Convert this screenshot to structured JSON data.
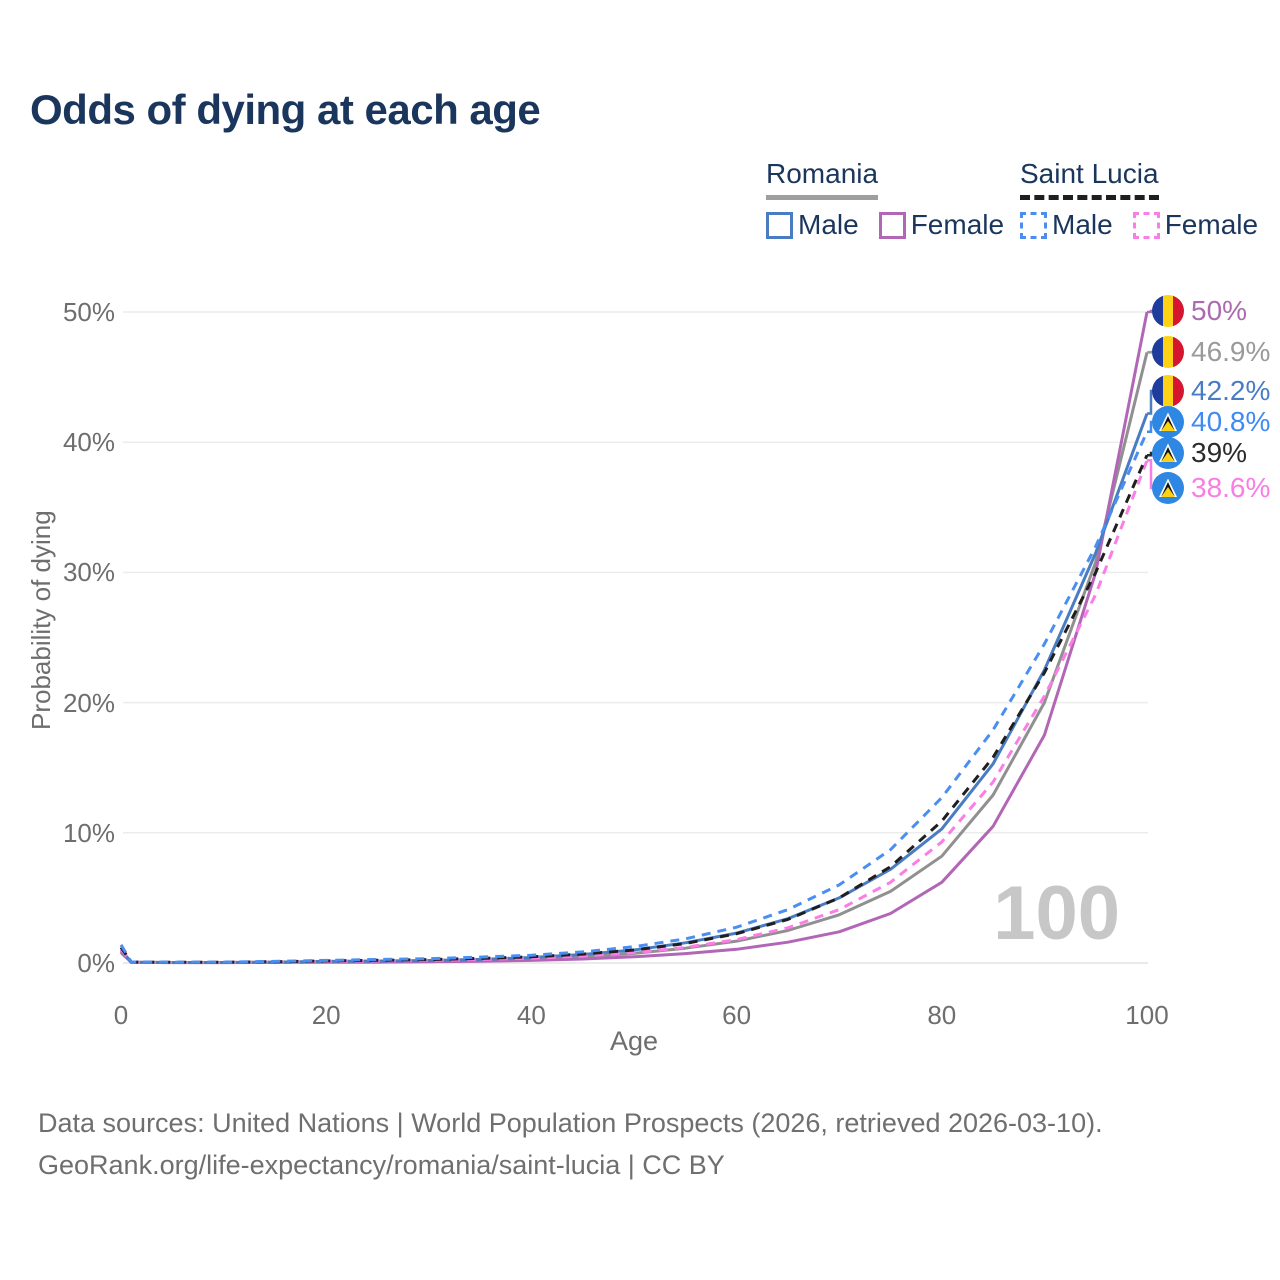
{
  "title": "Odds of dying at each age",
  "legend": {
    "romania": {
      "title": "Romania",
      "male": "Male",
      "female": "Female"
    },
    "saint_lucia": {
      "title": "Saint Lucia",
      "male": "Male",
      "female": "Female"
    }
  },
  "axes": {
    "x": {
      "label": "Age",
      "ticks": [
        "0",
        "20",
        "40",
        "60",
        "80",
        "100"
      ]
    },
    "y": {
      "label": "Probability of dying",
      "ticks": [
        "0%",
        "10%",
        "20%",
        "30%",
        "40%",
        "50%"
      ]
    }
  },
  "watermark": "100",
  "footer": {
    "line1": "Data sources: United Nations | World Population Prospects (2026, retrieved 2026-03-10).",
    "line2": "GeoRank.org/life-expectancy/romania/saint-lucia | CC BY"
  },
  "colors": {
    "title_text": "#1b365c",
    "romania_male": "#4a7cc2",
    "romania_female": "#b266b6",
    "romania_both": "#909090",
    "saint_lucia_male": "#4b8ef2",
    "saint_lucia_female": "#fb7de6",
    "saint_lucia_both": "#1f1f1f",
    "grid": "#ececec",
    "axis_text": "#6e6e6e",
    "watermark": "#c7c7c7"
  },
  "end_labels": [
    {
      "value": "50%",
      "series": "Romania Female",
      "flag": "ro",
      "color": "#aa6bb0"
    },
    {
      "value": "46.9%",
      "series": "Romania Both sexes",
      "flag": "ro",
      "color": "#9a9a9a"
    },
    {
      "value": "42.2%",
      "series": "Romania Male",
      "flag": "ro",
      "color": "#4a7cc4"
    },
    {
      "value": "40.8%",
      "series": "Saint Lucia Male",
      "flag": "lc",
      "color": "#3f8af3"
    },
    {
      "value": "39%",
      "series": "Saint Lucia Both sexes",
      "flag": "lc",
      "color": "#2b2b2b"
    },
    {
      "value": "38.6%",
      "series": "Saint Lucia Female",
      "flag": "lc",
      "color": "#f87de4"
    }
  ],
  "chart_data": {
    "type": "line",
    "title": "Odds of dying at each age",
    "xlabel": "Age",
    "ylabel": "Probability of dying",
    "xlim": [
      0,
      100
    ],
    "ylim": [
      0,
      50
    ],
    "grid": "horizontal-only",
    "legend_position": "top-right",
    "x": [
      0,
      1,
      5,
      10,
      15,
      20,
      25,
      30,
      35,
      40,
      45,
      50,
      55,
      60,
      65,
      70,
      75,
      80,
      85,
      90,
      95,
      100
    ],
    "series": [
      {
        "name": "Romania Both sexes",
        "country": "Romania",
        "sex": "both",
        "color": "#909090",
        "dashed": false,
        "values": [
          0.9,
          0.055,
          0.035,
          0.035,
          0.055,
          0.09,
          0.11,
          0.14,
          0.21,
          0.31,
          0.48,
          0.74,
          1.14,
          1.68,
          2.5,
          3.7,
          5.5,
          8.2,
          12.9,
          20.0,
          30.8,
          46.9
        ]
      },
      {
        "name": "Romania Female",
        "country": "Romania",
        "sex": "female",
        "color": "#b266b6",
        "dashed": false,
        "values": [
          0.8,
          0.05,
          0.03,
          0.03,
          0.04,
          0.05,
          0.06,
          0.09,
          0.13,
          0.2,
          0.31,
          0.48,
          0.72,
          1.05,
          1.6,
          2.4,
          3.8,
          6.2,
          10.5,
          17.5,
          30.0,
          50.0
        ]
      },
      {
        "name": "Romania Male",
        "country": "Romania",
        "sex": "male",
        "color": "#4a7cc2",
        "dashed": false,
        "values": [
          1.0,
          0.06,
          0.04,
          0.04,
          0.07,
          0.12,
          0.15,
          0.19,
          0.28,
          0.42,
          0.65,
          1.0,
          1.55,
          2.3,
          3.4,
          5.0,
          7.2,
          10.3,
          15.3,
          22.5,
          31.5,
          42.2
        ]
      },
      {
        "name": "Saint Lucia Female",
        "country": "Saint Lucia",
        "sex": "female",
        "color": "#fb7de6",
        "dashed": true,
        "values": [
          1.05,
          0.06,
          0.04,
          0.05,
          0.08,
          0.12,
          0.16,
          0.2,
          0.27,
          0.37,
          0.53,
          0.8,
          1.2,
          1.8,
          2.7,
          4.1,
          6.2,
          9.3,
          13.9,
          20.5,
          28.3,
          38.6
        ]
      },
      {
        "name": "Saint Lucia Both sexes",
        "country": "Saint Lucia",
        "sex": "both",
        "color": "#1f1f1f",
        "dashed": true,
        "values": [
          1.2,
          0.07,
          0.05,
          0.06,
          0.1,
          0.16,
          0.21,
          0.26,
          0.35,
          0.48,
          0.68,
          1.0,
          1.5,
          2.25,
          3.35,
          5.0,
          7.4,
          10.9,
          15.8,
          22.3,
          30.0,
          39.0
        ]
      },
      {
        "name": "Saint Lucia Male",
        "country": "Saint Lucia",
        "sex": "male",
        "color": "#4b8ef2",
        "dashed": true,
        "values": [
          1.4,
          0.08,
          0.06,
          0.07,
          0.12,
          0.2,
          0.27,
          0.33,
          0.45,
          0.6,
          0.85,
          1.25,
          1.85,
          2.75,
          4.1,
          6.0,
          8.7,
          12.7,
          17.9,
          24.5,
          32.0,
          40.8
        ]
      }
    ],
    "end_values": {
      "Romania Female": 50.0,
      "Romania Both sexes": 46.9,
      "Romania Male": 42.2,
      "Saint Lucia Male": 40.8,
      "Saint Lucia Both sexes": 39.0,
      "Saint Lucia Female": 38.6
    }
  }
}
